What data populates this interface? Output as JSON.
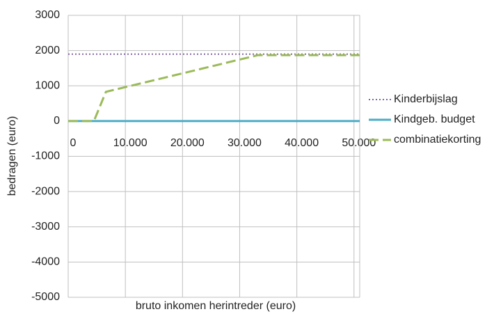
{
  "chart_data": {
    "type": "line",
    "x_label": "bruto inkomen herintreder (euro)",
    "y_label": "bedragen (euro)",
    "x": [
      0,
      4500,
      6600,
      33200,
      51000
    ],
    "series": [
      {
        "name": "Kinderbijslag",
        "color": "#8064a2",
        "dash": "dotted",
        "values": [
          1900,
          1900,
          1900,
          1900,
          1900
        ]
      },
      {
        "name": "Kindgeb. budget",
        "color": "#4bacc6",
        "dash": "solid",
        "values": [
          0,
          0,
          0,
          0,
          0
        ]
      },
      {
        "name": "combinatiekorting",
        "color": "#9bbb59",
        "dash": "dashed",
        "values": [
          0,
          0,
          830,
          1870,
          1870
        ]
      }
    ],
    "xlim": [
      0,
      51000
    ],
    "xticks": [
      0,
      {
        "value": 10000,
        "label": "10.000"
      },
      {
        "value": 20000,
        "label": "20.000"
      },
      {
        "value": 30000,
        "label": "30.000"
      },
      {
        "value": 40000,
        "label": "40.000"
      },
      {
        "value": 50000,
        "label": "50.000"
      }
    ],
    "ylim": [
      -5000,
      3000
    ],
    "yticks": [
      -5000,
      -4000,
      -3000,
      -2000,
      -1000,
      0,
      1000,
      2000,
      3000
    ],
    "grid": true,
    "legend": "right"
  }
}
